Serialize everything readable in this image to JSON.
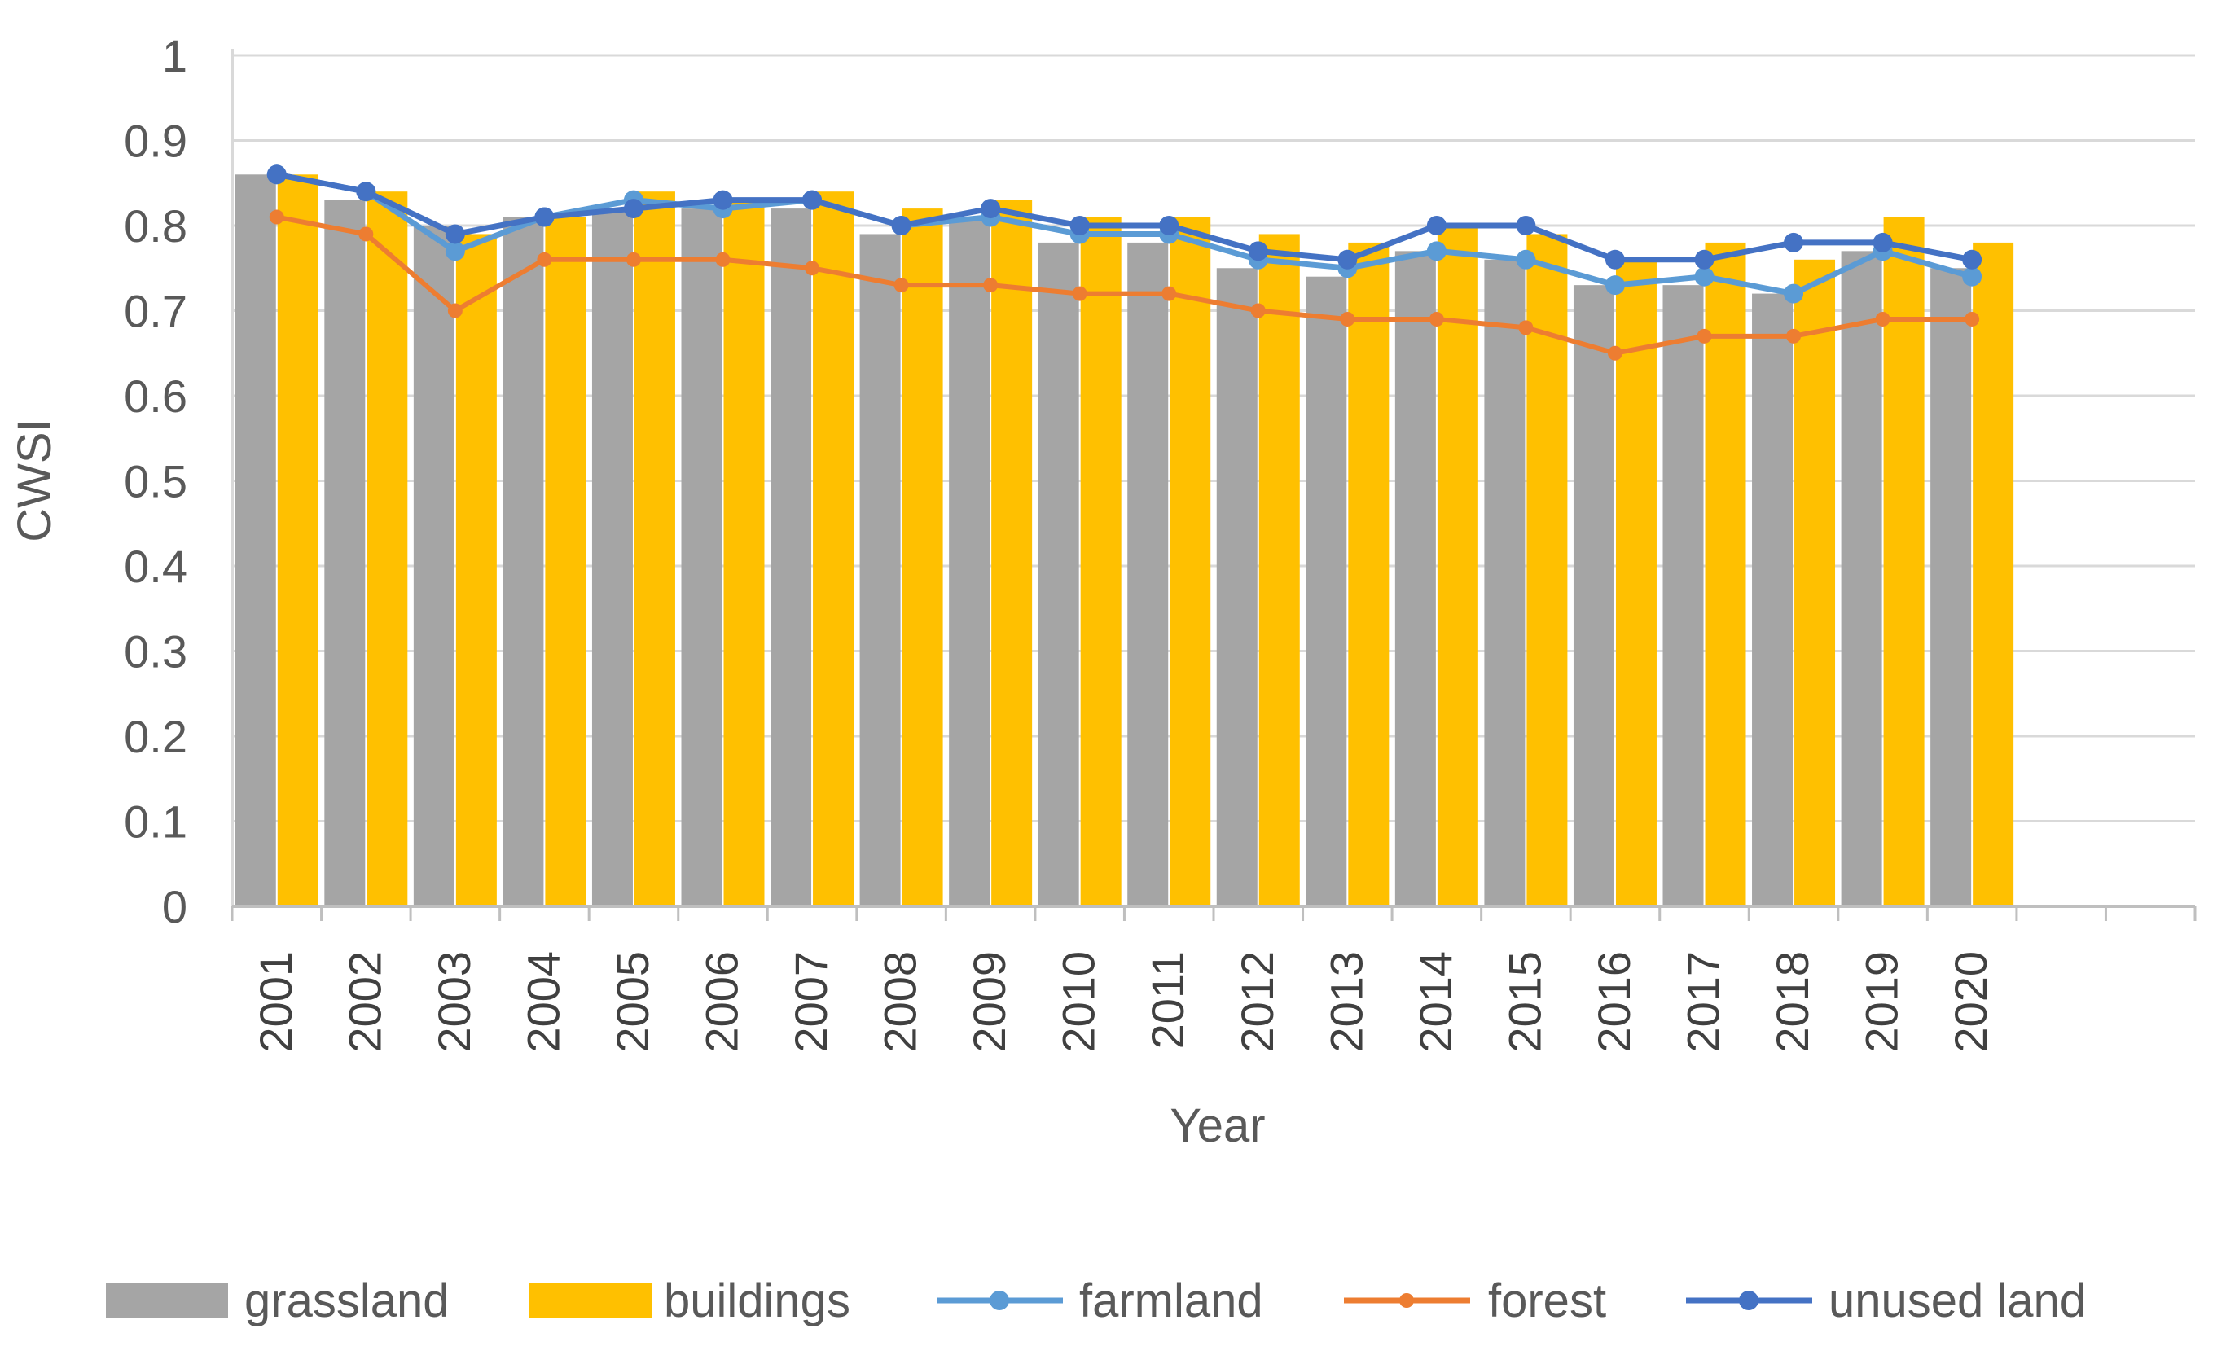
{
  "chart_data": {
    "type": "bar",
    "title": "",
    "xlabel": "Year",
    "ylabel": "CWSI",
    "ylim": [
      0,
      1
    ],
    "yticks": [
      0,
      0.1,
      0.2,
      0.3,
      0.4,
      0.5,
      0.6,
      0.7,
      0.8,
      0.9,
      1
    ],
    "ytick_labels": [
      "0",
      "0.1",
      "0.2",
      "0.3",
      "0.4",
      "0.5",
      "0.6",
      "0.7",
      "0.8",
      "0.9",
      "1"
    ],
    "grid": true,
    "categories": [
      "2001",
      "2002",
      "2003",
      "2004",
      "2005",
      "2006",
      "2007",
      "2008",
      "2009",
      "2010",
      "2011",
      "2012",
      "2013",
      "2014",
      "2015",
      "2016",
      "2017",
      "2018",
      "2019",
      "2020"
    ],
    "series": [
      {
        "name": "grassland",
        "kind": "bar",
        "color": "#a5a5a5",
        "values": [
          0.86,
          0.83,
          0.8,
          0.81,
          0.82,
          0.82,
          0.82,
          0.79,
          0.81,
          0.78,
          0.78,
          0.75,
          0.74,
          0.77,
          0.76,
          0.73,
          0.73,
          0.72,
          0.77,
          0.75
        ]
      },
      {
        "name": "buildings",
        "kind": "bar",
        "color": "#ffc000",
        "values": [
          0.86,
          0.84,
          0.79,
          0.81,
          0.84,
          0.83,
          0.84,
          0.82,
          0.83,
          0.81,
          0.81,
          0.79,
          0.78,
          0.8,
          0.79,
          0.76,
          0.78,
          0.76,
          0.81,
          0.78
        ]
      },
      {
        "name": "farmland",
        "kind": "line",
        "color": "#5b9bd5",
        "values": [
          0.86,
          0.84,
          0.77,
          0.81,
          0.83,
          0.82,
          0.83,
          0.8,
          0.81,
          0.79,
          0.79,
          0.76,
          0.75,
          0.77,
          0.76,
          0.73,
          0.74,
          0.72,
          0.77,
          0.74
        ]
      },
      {
        "name": "forest",
        "kind": "line",
        "color": "#ed7d31",
        "values": [
          0.81,
          0.79,
          0.7,
          0.76,
          0.76,
          0.76,
          0.75,
          0.73,
          0.73,
          0.72,
          0.72,
          0.7,
          0.69,
          0.69,
          0.68,
          0.65,
          0.67,
          0.67,
          0.69,
          0.69
        ]
      },
      {
        "name": "unused land",
        "kind": "line",
        "color": "#4472c4",
        "values": [
          0.86,
          0.84,
          0.79,
          0.81,
          0.82,
          0.83,
          0.83,
          0.8,
          0.82,
          0.8,
          0.8,
          0.77,
          0.76,
          0.8,
          0.8,
          0.76,
          0.76,
          0.78,
          0.78,
          0.76
        ]
      }
    ],
    "legend_position": "bottom",
    "extra_empty_slots": 2
  }
}
